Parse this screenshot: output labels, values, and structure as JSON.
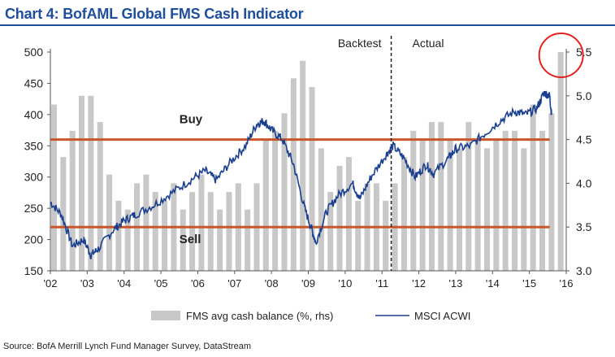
{
  "title": "Chart 4: BofAML Global FMS Cash Indicator",
  "source": "Source: BofA Merrill Lynch Fund Manager Survey, DataStream",
  "colors": {
    "title": "#1f4e9c",
    "bars": "#c8c8c8",
    "line": "#1a3f8f",
    "threshold": "#c8562a",
    "circle": "#e32222"
  },
  "chart_data": {
    "type": "bar+line",
    "x_tick_labels": [
      "'02",
      "'03",
      "'04",
      "'05",
      "'06",
      "'07",
      "'08",
      "'09",
      "'10",
      "'11",
      "'12",
      "'13",
      "'14",
      "'15",
      "'16"
    ],
    "x_ticks": [
      2002,
      2003,
      2004,
      2005,
      2006,
      2007,
      2008,
      2009,
      2010,
      2011,
      2012,
      2013,
      2014,
      2015,
      2016
    ],
    "xlim": [
      2002,
      2016
    ],
    "y_left": {
      "ticks": [
        500,
        450,
        400,
        350,
        300,
        250,
        200,
        150
      ],
      "range": [
        150,
        500
      ]
    },
    "y_right": {
      "ticks": [
        "5.5",
        "5.0",
        "4.5",
        "4.0",
        "3.5",
        "3.0"
      ],
      "range": [
        3.0,
        5.5
      ]
    },
    "annotations": {
      "buy": "Buy",
      "sell": "Sell",
      "backtest": "Backtest",
      "actual": "Actual"
    },
    "divider_x": 2011.25,
    "thresholds_rhs": {
      "buy": 4.5,
      "sell": 3.5
    },
    "legend": {
      "bars": "FMS avg cash balance (%, rhs)",
      "line": "MSCI ACWI"
    },
    "series": [
      {
        "name": "FMS avg cash balance (%, rhs)",
        "axis": "right",
        "kind": "bar",
        "x": [
          2002.0,
          2002.25,
          2002.5,
          2002.75,
          2003.0,
          2003.25,
          2003.5,
          2003.75,
          2004.0,
          2004.25,
          2004.5,
          2004.75,
          2005.0,
          2005.25,
          2005.5,
          2005.75,
          2006.0,
          2006.25,
          2006.5,
          2006.75,
          2007.0,
          2007.25,
          2007.5,
          2007.75,
          2008.0,
          2008.25,
          2008.5,
          2008.75,
          2009.0,
          2009.25,
          2009.5,
          2009.75,
          2010.0,
          2010.25,
          2010.5,
          2010.75,
          2011.0,
          2011.25,
          2011.5,
          2011.75,
          2012.0,
          2012.25,
          2012.5,
          2012.75,
          2013.0,
          2013.25,
          2013.5,
          2013.75,
          2014.0,
          2014.25,
          2014.5,
          2014.75,
          2015.0,
          2015.25,
          2015.5,
          2015.75
        ],
        "values": [
          4.9,
          4.3,
          4.6,
          5.0,
          5.0,
          4.7,
          4.1,
          3.8,
          3.7,
          4.0,
          4.1,
          3.9,
          3.8,
          4.0,
          3.7,
          3.9,
          4.1,
          3.9,
          3.7,
          3.9,
          4.0,
          3.7,
          4.0,
          4.5,
          4.6,
          4.8,
          5.2,
          5.4,
          5.1,
          4.4,
          3.9,
          4.2,
          4.3,
          3.8,
          4.0,
          4.0,
          3.8,
          4.0,
          4.3,
          4.6,
          4.5,
          4.7,
          4.7,
          4.5,
          4.4,
          4.7,
          4.5,
          4.4,
          4.5,
          4.6,
          4.6,
          4.4,
          4.9,
          4.6,
          4.8,
          5.5
        ]
      },
      {
        "name": "MSCI ACWI",
        "axis": "left",
        "kind": "line",
        "x": [
          2002.0,
          2002.3,
          2002.6,
          2002.9,
          2003.1,
          2003.3,
          2003.7,
          2004.0,
          2004.3,
          2004.8,
          2005.3,
          2005.8,
          2006.2,
          2006.5,
          2006.9,
          2007.3,
          2007.6,
          2007.8,
          2008.0,
          2008.3,
          2008.6,
          2008.9,
          2009.1,
          2009.2,
          2009.5,
          2009.8,
          2010.2,
          2010.4,
          2010.7,
          2011.1,
          2011.3,
          2011.6,
          2011.9,
          2012.2,
          2012.4,
          2012.8,
          2013.0,
          2013.4,
          2013.8,
          2014.2,
          2014.6,
          2014.9,
          2015.2,
          2015.4,
          2015.55,
          2015.6
        ],
        "values": [
          260,
          240,
          190,
          200,
          175,
          185,
          215,
          230,
          240,
          255,
          275,
          295,
          310,
          295,
          325,
          350,
          385,
          390,
          375,
          360,
          320,
          250,
          215,
          195,
          245,
          270,
          290,
          265,
          300,
          335,
          350,
          330,
          300,
          320,
          305,
          330,
          345,
          350,
          370,
          390,
          405,
          400,
          410,
          435,
          430,
          400
        ]
      }
    ]
  }
}
